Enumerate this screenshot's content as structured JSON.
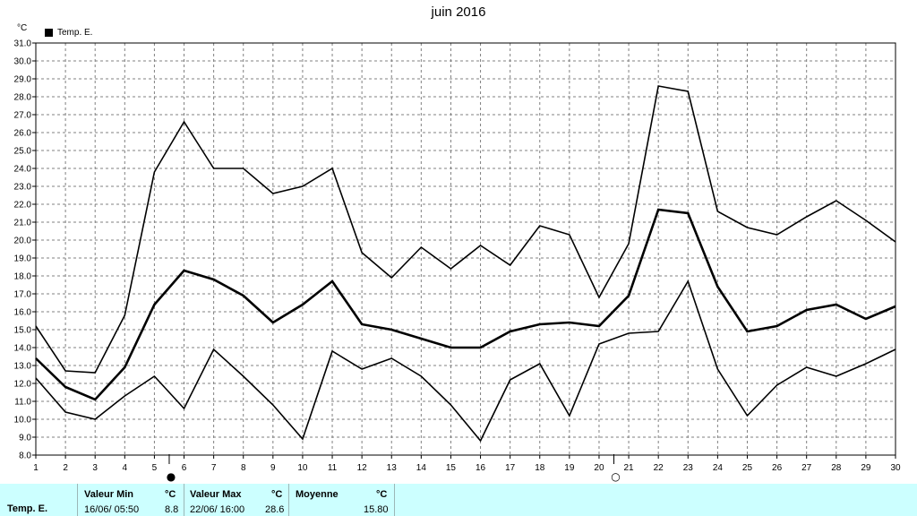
{
  "chart_data": {
    "type": "line",
    "title": "juin 2016",
    "unit_label": "°C",
    "legend": [
      {
        "name": "Temp. E.",
        "color": "#000000"
      }
    ],
    "legend_placement": "top-left",
    "grid": true,
    "ylim": [
      8.0,
      31.0
    ],
    "y_ticks": [
      "8.0",
      "9.0",
      "10.0",
      "11.0",
      "12.0",
      "13.0",
      "14.0",
      "15.0",
      "16.0",
      "17.0",
      "18.0",
      "19.0",
      "20.0",
      "21.0",
      "22.0",
      "23.0",
      "24.0",
      "25.0",
      "26.0",
      "27.0",
      "28.0",
      "29.0",
      "30.0",
      "31.0"
    ],
    "x": [
      1,
      2,
      3,
      4,
      5,
      6,
      7,
      8,
      9,
      10,
      11,
      12,
      13,
      14,
      15,
      16,
      17,
      18,
      19,
      20,
      21,
      22,
      23,
      24,
      25,
      26,
      27,
      28,
      29,
      30
    ],
    "series": [
      {
        "name": "Temp. E.",
        "role": "max",
        "values": [
          15.2,
          12.7,
          12.6,
          15.8,
          23.8,
          26.6,
          24.0,
          24.0,
          22.6,
          23.0,
          24.0,
          19.3,
          17.9,
          19.6,
          18.4,
          19.7,
          18.6,
          20.8,
          20.3,
          16.8,
          19.8,
          28.6,
          28.3,
          21.6,
          20.7,
          20.3,
          21.3,
          22.2,
          21.1,
          19.9
        ]
      },
      {
        "role": "mean",
        "values": [
          13.4,
          11.8,
          11.1,
          12.9,
          16.4,
          18.3,
          17.8,
          16.9,
          15.4,
          16.4,
          17.7,
          15.3,
          15.0,
          14.5,
          14.0,
          14.0,
          14.9,
          15.3,
          15.4,
          15.2,
          16.9,
          21.7,
          21.5,
          17.4,
          14.9,
          15.2,
          16.1,
          16.4,
          15.6,
          16.3
        ]
      },
      {
        "role": "min",
        "values": [
          12.3,
          10.4,
          10.0,
          11.3,
          12.4,
          10.6,
          13.9,
          12.4,
          10.8,
          8.9,
          13.8,
          12.8,
          13.4,
          12.4,
          10.8,
          8.8,
          12.2,
          13.1,
          10.2,
          14.2,
          14.8,
          14.9,
          17.7,
          12.8,
          10.2,
          11.9,
          12.9,
          12.4,
          13.1,
          13.9
        ]
      }
    ],
    "moon_markers": [
      {
        "after_day": 5,
        "glyph": "●"
      },
      {
        "after_day": 20,
        "glyph": "○"
      }
    ]
  },
  "stats": {
    "series_name": "Temp. E.",
    "min": {
      "label": "Valeur Min",
      "unit": "°C",
      "datetime": "16/06/ 05:50",
      "value": "8.8"
    },
    "max": {
      "label": "Valeur Max",
      "unit": "°C",
      "datetime": "22/06/ 16:00",
      "value": "28.6"
    },
    "avg": {
      "label": "Moyenne",
      "unit": "°C",
      "value": "15.80"
    }
  },
  "colors": {
    "stats_bg": "#ccffff",
    "line": "#000000",
    "grid": "#808080"
  }
}
